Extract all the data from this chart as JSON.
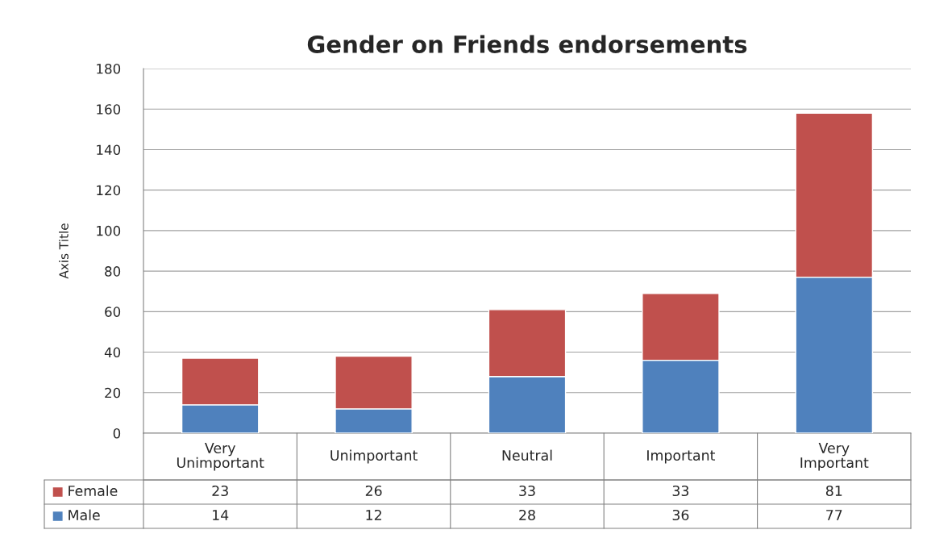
{
  "chart_data": {
    "type": "bar",
    "title": "Gender on Friends endorsements",
    "ylabel": "Axis Title",
    "categories": [
      "Very Unimportant",
      "Unimportant",
      "Neutral",
      "Important",
      "Very Important"
    ],
    "stacked": true,
    "series": [
      {
        "name": "Male",
        "color": "#4f81bd",
        "values": [
          14,
          12,
          28,
          36,
          77
        ]
      },
      {
        "name": "Female",
        "color": "#c0504d",
        "values": [
          23,
          26,
          33,
          33,
          81
        ]
      }
    ],
    "ylim": [
      0,
      180
    ],
    "yticks": [
      0,
      20,
      40,
      60,
      80,
      100,
      120,
      140,
      160,
      180
    ],
    "grid": "y",
    "legend": "bottom",
    "data_labels": true
  }
}
